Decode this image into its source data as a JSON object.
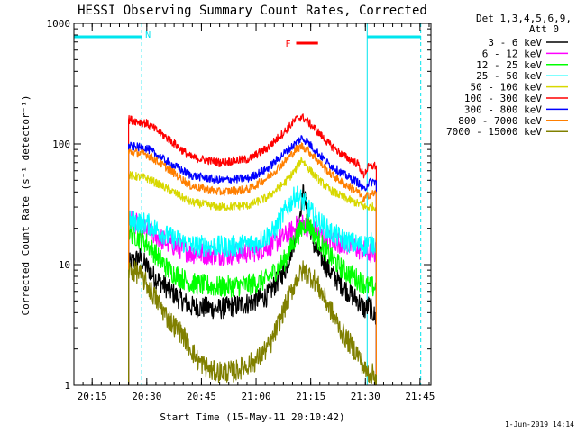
{
  "chart_data": {
    "type": "line",
    "title": "HESSI Observing Summary Count Rates, Corrected",
    "xlabel": "Start Time (15-May-11 20:10:42)",
    "ylabel": "Corrected Count Rate (s⁻¹ detector⁻¹)",
    "y_scale": "log",
    "ylim": [
      1,
      1000
    ],
    "xlim_minutes_after_2010": [
      0,
      98
    ],
    "x_tick_labels": [
      "20:15",
      "20:30",
      "20:45",
      "21:00",
      "21:15",
      "21:30",
      "21:45"
    ],
    "x_tick_minutes_after_2010": [
      5,
      20,
      35,
      50,
      65,
      80,
      95
    ],
    "y_tick_labels": [
      "1",
      "10",
      "100",
      "1000"
    ],
    "y_tick_values": [
      1,
      10,
      100,
      1000
    ],
    "legend_header": [
      "Det 1,3,4,5,6,9,",
      "Att 0"
    ],
    "footer_date": "1-Jun-2019 14:14",
    "legend_position": "right, outside plot",
    "night_markers": {
      "label": "N",
      "color": "#00e5ee",
      "night_start_minutes_after_2010": [
        18.6,
        80.5
      ],
      "night_end_minutes_after_2010": [
        18.6,
        95.2
      ]
    },
    "flare_marker": {
      "label": "F",
      "color": "#ff0000",
      "start_minutes_after_2010": 61,
      "end_minutes_after_2010": 67
    },
    "data_window_minutes_after_2010": [
      15,
      83
    ],
    "series": [
      {
        "name": "3 - 6 keV",
        "color": "#000000",
        "values_min_after_2010": [
          [
            15,
            10
          ],
          [
            18,
            11.5
          ],
          [
            22,
            8
          ],
          [
            28,
            5.5
          ],
          [
            32,
            4.5
          ],
          [
            40,
            4.3
          ],
          [
            48,
            4.8
          ],
          [
            53,
            5.5
          ],
          [
            58,
            9
          ],
          [
            61,
            18
          ],
          [
            63,
            40
          ],
          [
            64,
            28
          ],
          [
            66,
            14
          ],
          [
            70,
            9
          ],
          [
            74,
            6.5
          ],
          [
            78,
            5
          ],
          [
            80,
            4.2
          ],
          [
            81,
            4.6
          ],
          [
            83,
            3.5
          ]
        ]
      },
      {
        "name": "6 - 12 keV",
        "color": "#ff00ff",
        "values_min_after_2010": [
          [
            15,
            24
          ],
          [
            20,
            19
          ],
          [
            26,
            15
          ],
          [
            32,
            12.5
          ],
          [
            42,
            12
          ],
          [
            50,
            13
          ],
          [
            55,
            15
          ],
          [
            59,
            18
          ],
          [
            62,
            22
          ],
          [
            64,
            21
          ],
          [
            66,
            19
          ],
          [
            70,
            16
          ],
          [
            74,
            15
          ],
          [
            78,
            13.5
          ],
          [
            81,
            12.5
          ],
          [
            83,
            12.5
          ]
        ]
      },
      {
        "name": "12 - 25 keV",
        "color": "#00ff00",
        "values_min_after_2010": [
          [
            15,
            19
          ],
          [
            20,
            15
          ],
          [
            26,
            9
          ],
          [
            32,
            7
          ],
          [
            40,
            6.5
          ],
          [
            48,
            6.8
          ],
          [
            53,
            7.5
          ],
          [
            58,
            11
          ],
          [
            61,
            17
          ],
          [
            64,
            23
          ],
          [
            66,
            18
          ],
          [
            70,
            12
          ],
          [
            74,
            9
          ],
          [
            78,
            7.5
          ],
          [
            81,
            6.5
          ],
          [
            83,
            6.5
          ]
        ]
      },
      {
        "name": "25 - 50 keV",
        "color": "#00ffff",
        "values_min_after_2010": [
          [
            15,
            23
          ],
          [
            20,
            22
          ],
          [
            26,
            17
          ],
          [
            32,
            14.5
          ],
          [
            42,
            14
          ],
          [
            50,
            15
          ],
          [
            55,
            19
          ],
          [
            58,
            28
          ],
          [
            61,
            38
          ],
          [
            63,
            33
          ],
          [
            66,
            25
          ],
          [
            70,
            19
          ],
          [
            74,
            16
          ],
          [
            78,
            14.5
          ],
          [
            80,
            14.5
          ],
          [
            81,
            15
          ],
          [
            83,
            15
          ]
        ]
      },
      {
        "name": "50 - 100 keV",
        "color": "#d8d800",
        "values_min_after_2010": [
          [
            15,
            55
          ],
          [
            20,
            52
          ],
          [
            26,
            42
          ],
          [
            32,
            33
          ],
          [
            40,
            30
          ],
          [
            48,
            31
          ],
          [
            53,
            36
          ],
          [
            58,
            48
          ],
          [
            61,
            62
          ],
          [
            62.5,
            75
          ],
          [
            64,
            65
          ],
          [
            66,
            55
          ],
          [
            70,
            42
          ],
          [
            74,
            36
          ],
          [
            78,
            32
          ],
          [
            80,
            30
          ],
          [
            81,
            30
          ],
          [
            83,
            30
          ]
        ]
      },
      {
        "name": "100 - 300 keV",
        "color": "#ff0000",
        "values_min_after_2010": [
          [
            15,
            160
          ],
          [
            20,
            148
          ],
          [
            26,
            110
          ],
          [
            32,
            78
          ],
          [
            40,
            70
          ],
          [
            48,
            75
          ],
          [
            53,
            92
          ],
          [
            58,
            128
          ],
          [
            61,
            160
          ],
          [
            62.5,
            168
          ],
          [
            64,
            155
          ],
          [
            66,
            135
          ],
          [
            70,
            100
          ],
          [
            74,
            80
          ],
          [
            78,
            68
          ],
          [
            79.5,
            55
          ],
          [
            80.5,
            62
          ],
          [
            81,
            65
          ],
          [
            83,
            66
          ]
        ]
      },
      {
        "name": "300 - 800 keV",
        "color": "#0000ff",
        "values_min_after_2010": [
          [
            15,
            96
          ],
          [
            20,
            92
          ],
          [
            26,
            70
          ],
          [
            32,
            55
          ],
          [
            40,
            50
          ],
          [
            48,
            52
          ],
          [
            53,
            62
          ],
          [
            58,
            85
          ],
          [
            61,
            102
          ],
          [
            62.5,
            112
          ],
          [
            64,
            105
          ],
          [
            66,
            90
          ],
          [
            70,
            68
          ],
          [
            74,
            56
          ],
          [
            78,
            48
          ],
          [
            79.5,
            41
          ],
          [
            80.5,
            46
          ],
          [
            81,
            48
          ],
          [
            83,
            49
          ]
        ]
      },
      {
        "name": "800 - 7000 keV",
        "color": "#ff7f00",
        "values_min_after_2010": [
          [
            15,
            86
          ],
          [
            20,
            82
          ],
          [
            26,
            62
          ],
          [
            32,
            45
          ],
          [
            40,
            40
          ],
          [
            48,
            42
          ],
          [
            53,
            52
          ],
          [
            58,
            72
          ],
          [
            61,
            90
          ],
          [
            62.5,
            96
          ],
          [
            64,
            90
          ],
          [
            66,
            78
          ],
          [
            70,
            58
          ],
          [
            74,
            47
          ],
          [
            78,
            40
          ],
          [
            79.5,
            34
          ],
          [
            80.5,
            37
          ],
          [
            81,
            38
          ],
          [
            83,
            39
          ]
        ]
      },
      {
        "name": "7000 - 15000 keV",
        "color": "#808000",
        "values_min_after_2010": [
          [
            15,
            9
          ],
          [
            18,
            8.5
          ],
          [
            22,
            5.5
          ],
          [
            26,
            3.5
          ],
          [
            30,
            2.6
          ],
          [
            34,
            1.6
          ],
          [
            38,
            1.3
          ],
          [
            44,
            1.3
          ],
          [
            50,
            1.6
          ],
          [
            54,
            2.2
          ],
          [
            58,
            4.5
          ],
          [
            61,
            7.5
          ],
          [
            63,
            9
          ],
          [
            66,
            7.5
          ],
          [
            70,
            4.5
          ],
          [
            74,
            2.6
          ],
          [
            78,
            1.8
          ],
          [
            80,
            1.3
          ],
          [
            83,
            1.2
          ]
        ]
      }
    ]
  }
}
